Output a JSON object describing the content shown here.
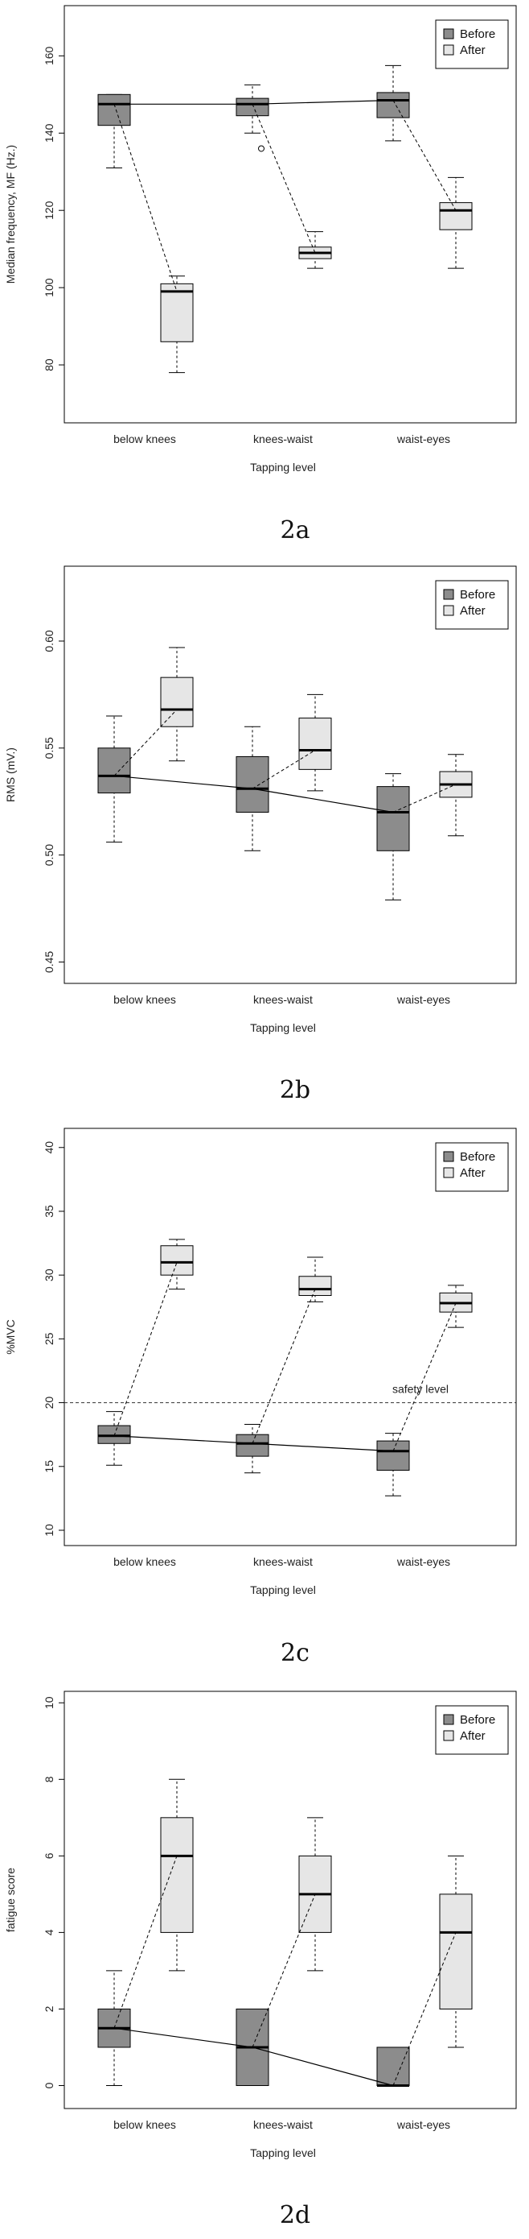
{
  "chart_data": [
    {
      "type": "box",
      "caption": "2a",
      "ylabel": "Median frequency, MF (Hz.)",
      "xlabel": "Tapping level",
      "categories": [
        "below knees",
        "knees-waist",
        "waist-eyes"
      ],
      "ylim": [
        65,
        173
      ],
      "yticks": [
        80,
        100,
        120,
        140,
        160
      ],
      "legend": [
        "Before",
        "After"
      ],
      "legend_position": "top-right",
      "colors": {
        "before": "#8c8c8c",
        "after": "#e6e6e6"
      },
      "series": [
        {
          "name": "Before",
          "boxes": [
            {
              "min": 131,
              "q1": 142,
              "median": 147.5,
              "q3": 150,
              "max": 150,
              "outliers": []
            },
            {
              "min": 140,
              "q1": 144.5,
              "median": 147.5,
              "q3": 149,
              "max": 152.5,
              "outliers": [
                136
              ]
            },
            {
              "min": 138,
              "q1": 144,
              "median": 148.5,
              "q3": 150.5,
              "max": 157.5,
              "outliers": []
            }
          ]
        },
        {
          "name": "After",
          "boxes": [
            {
              "min": 78,
              "q1": 86,
              "median": 99,
              "q3": 101,
              "max": 103,
              "outliers": []
            },
            {
              "min": 105,
              "q1": 107.5,
              "median": 109,
              "q3": 110.5,
              "max": 114.5,
              "outliers": []
            },
            {
              "min": 105,
              "q1": 115,
              "median": 120,
              "q3": 122,
              "max": 128.5,
              "outliers": []
            }
          ]
        }
      ],
      "safety_line": null
    },
    {
      "type": "box",
      "caption": "2b",
      "ylabel": "RMS (mV.)",
      "xlabel": "Tapping level",
      "categories": [
        "below knees",
        "knees-waist",
        "waist-eyes"
      ],
      "ylim": [
        0.44,
        0.635
      ],
      "yticks": [
        0.45,
        0.5,
        0.55,
        0.6
      ],
      "ytick_labels": [
        "0.45",
        "0.50",
        "0.55",
        "0.60"
      ],
      "legend": [
        "Before",
        "After"
      ],
      "legend_position": "top-right",
      "colors": {
        "before": "#8c8c8c",
        "after": "#e6e6e6"
      },
      "series": [
        {
          "name": "Before",
          "boxes": [
            {
              "min": 0.506,
              "q1": 0.529,
              "median": 0.537,
              "q3": 0.55,
              "max": 0.565,
              "outliers": []
            },
            {
              "min": 0.502,
              "q1": 0.52,
              "median": 0.531,
              "q3": 0.546,
              "max": 0.56,
              "outliers": []
            },
            {
              "min": 0.479,
              "q1": 0.502,
              "median": 0.52,
              "q3": 0.532,
              "max": 0.538,
              "outliers": []
            }
          ]
        },
        {
          "name": "After",
          "boxes": [
            {
              "min": 0.544,
              "q1": 0.56,
              "median": 0.568,
              "q3": 0.583,
              "max": 0.597,
              "outliers": []
            },
            {
              "min": 0.53,
              "q1": 0.54,
              "median": 0.549,
              "q3": 0.564,
              "max": 0.575,
              "outliers": []
            },
            {
              "min": 0.509,
              "q1": 0.527,
              "median": 0.533,
              "q3": 0.539,
              "max": 0.547,
              "outliers": []
            }
          ]
        }
      ],
      "safety_line": null
    },
    {
      "type": "box",
      "caption": "2c",
      "ylabel": "%MVC",
      "xlabel": "Tapping level",
      "categories": [
        "below knees",
        "knees-waist",
        "waist-eyes"
      ],
      "ylim": [
        8.8,
        41.5
      ],
      "yticks": [
        10,
        15,
        20,
        25,
        30,
        35,
        40
      ],
      "legend": [
        "Before",
        "After"
      ],
      "legend_position": "top-right",
      "colors": {
        "before": "#8c8c8c",
        "after": "#e6e6e6"
      },
      "series": [
        {
          "name": "Before",
          "boxes": [
            {
              "min": 15.1,
              "q1": 16.8,
              "median": 17.4,
              "q3": 18.2,
              "max": 19.3,
              "outliers": []
            },
            {
              "min": 14.5,
              "q1": 15.8,
              "median": 16.8,
              "q3": 17.5,
              "max": 18.3,
              "outliers": []
            },
            {
              "min": 12.7,
              "q1": 14.7,
              "median": 16.2,
              "q3": 17.0,
              "max": 17.6,
              "outliers": []
            }
          ]
        },
        {
          "name": "After",
          "boxes": [
            {
              "min": 28.9,
              "q1": 30.0,
              "median": 31.0,
              "q3": 32.3,
              "max": 32.8,
              "outliers": []
            },
            {
              "min": 27.9,
              "q1": 28.4,
              "median": 28.9,
              "q3": 29.9,
              "max": 31.4,
              "outliers": []
            },
            {
              "min": 25.9,
              "q1": 27.1,
              "median": 27.8,
              "q3": 28.6,
              "max": 29.2,
              "outliers": []
            }
          ]
        }
      ],
      "safety_line": {
        "value": 20,
        "label": "safety level"
      }
    },
    {
      "type": "box",
      "caption": "2d",
      "ylabel": "fatigue score",
      "xlabel": "Tapping level",
      "categories": [
        "below knees",
        "knees-waist",
        "waist-eyes"
      ],
      "ylim": [
        -0.6,
        10.3
      ],
      "yticks": [
        0,
        2,
        4,
        6,
        8,
        10
      ],
      "legend": [
        "Before",
        "After"
      ],
      "legend_position": "top-right",
      "colors": {
        "before": "#8c8c8c",
        "after": "#e6e6e6"
      },
      "series": [
        {
          "name": "Before",
          "boxes": [
            {
              "min": 0,
              "q1": 1,
              "median": 1.5,
              "q3": 2,
              "max": 3,
              "outliers": []
            },
            {
              "min": 0,
              "q1": 0,
              "median": 1,
              "q3": 2,
              "max": 2,
              "outliers": []
            },
            {
              "min": 0,
              "q1": 0,
              "median": 0,
              "q3": 1,
              "max": 1,
              "outliers": []
            }
          ]
        },
        {
          "name": "After",
          "boxes": [
            {
              "min": 3,
              "q1": 4,
              "median": 6,
              "q3": 7,
              "max": 8,
              "outliers": []
            },
            {
              "min": 3,
              "q1": 4,
              "median": 5,
              "q3": 6,
              "max": 7,
              "outliers": []
            },
            {
              "min": 1,
              "q1": 2,
              "median": 4,
              "q3": 5,
              "max": 6,
              "outliers": []
            }
          ]
        }
      ],
      "safety_line": null
    }
  ]
}
